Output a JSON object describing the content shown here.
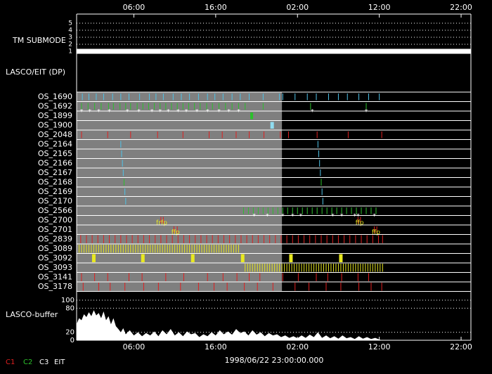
{
  "chart_data": {
    "type": "timeline",
    "xlabel": "1998/06/22 23:00:00.000",
    "xlim": [
      0,
      48.2
    ],
    "xticks": [
      {
        "value": 7,
        "label": "06:00"
      },
      {
        "value": 17,
        "label": "16:00"
      },
      {
        "value": 27,
        "label": "02:00"
      },
      {
        "value": 37,
        "label": "12:00"
      },
      {
        "value": 47,
        "label": "22:00"
      }
    ],
    "shaded_range": [
      0,
      25.1
    ],
    "shade_color": "#7f7f7f",
    "tm_submode": {
      "label": "TM SUBMODE",
      "ylim": [
        0.5,
        5.5
      ],
      "yticks": [
        1,
        2,
        3,
        4,
        5
      ],
      "x": [
        0,
        48.2
      ],
      "values": [
        1,
        1
      ],
      "color": "#ffffff"
    },
    "section_label": "LASCO/EIT (DP)",
    "marker_symbol": "*",
    "rows": [
      {
        "name": "OS_1690",
        "color": "#4fc3e8",
        "events": [
          0.7,
          1.5,
          2.4,
          3.3,
          4.4,
          5.4,
          6.4,
          7.7,
          8.9,
          9.7,
          10.6,
          11.8,
          12.8,
          13.8,
          14.9,
          16.0,
          16.9,
          17.9,
          19.0,
          20.0,
          21.1,
          22.8,
          24.8,
          25.2,
          26.7,
          28.2,
          29.3,
          30.8,
          32.0,
          33.1,
          34.5,
          35.7,
          37.0
        ]
      },
      {
        "name": "OS_1692",
        "color": "#2bc02b",
        "events": [
          0.6,
          1.4,
          2.2,
          3.0,
          3.9,
          4.5,
          5.3,
          6.0,
          6.6,
          7.4,
          8.1,
          8.8,
          9.5,
          10.2,
          10.9,
          11.6,
          12.3,
          13.0,
          13.7,
          14.4,
          15.1,
          15.9,
          16.6,
          17.4,
          18.2,
          19.0,
          19.8,
          20.6,
          22.8,
          28.6,
          35.4
        ],
        "stars": [
          0.6,
          1.6,
          2.7,
          4.0,
          6.2,
          7.6,
          9.2,
          10.2,
          11.2,
          12.4,
          13.4,
          14.7,
          16.0,
          17.4,
          18.6,
          19.8,
          28.8,
          35.4
        ]
      },
      {
        "name": "OS_1899",
        "color": "#2bc02b",
        "events": [
          21.4
        ]
      },
      {
        "name": "OS_1900",
        "color": "#8fdcf0",
        "events": [
          23.9
        ]
      },
      {
        "name": "OS_2048",
        "color": "#e02020",
        "events": [
          0.6,
          3.8,
          6.6,
          9.9,
          13.0,
          16.2,
          17.8,
          19.5,
          21.1,
          22.9,
          24.9,
          25.9,
          29.4,
          33.2,
          37.3
        ]
      },
      {
        "name": "OS_2164",
        "color": "#4fc3e8",
        "events": [
          5.4,
          29.5
        ]
      },
      {
        "name": "OS_2165",
        "color": "#4fc3e8",
        "events": [
          5.5,
          29.6
        ]
      },
      {
        "name": "OS_2166",
        "color": "#4fc3e8",
        "events": [
          5.6,
          29.7
        ]
      },
      {
        "name": "OS_2167",
        "color": "#4fc3e8",
        "events": [
          5.7,
          29.8
        ]
      },
      {
        "name": "OS_2168",
        "color": "#2bc02b",
        "events": [
          5.8,
          29.9
        ]
      },
      {
        "name": "OS_2169",
        "color": "#4fc3e8",
        "events": [
          5.9,
          30.0
        ]
      },
      {
        "name": "OS_2170",
        "color": "#4fc3e8",
        "events": [
          6.0,
          30.1
        ]
      },
      {
        "name": "OS_2566",
        "color": "#2bc02b",
        "events": [
          20.4,
          21.0,
          21.6,
          22.2,
          22.8,
          23.4,
          24.0,
          24.6,
          25.2,
          25.8,
          26.4,
          27.0,
          27.6,
          28.2,
          28.8,
          29.4,
          30.0,
          30.6,
          31.2,
          31.8,
          32.4,
          33.0,
          33.6,
          34.2,
          34.8,
          35.4,
          36.0,
          36.6
        ],
        "stars": [
          21.7,
          23.3,
          25.2,
          26.4,
          27.4,
          31.3,
          32.4,
          34.0,
          34.4,
          36.4
        ]
      },
      {
        "name": "OS_2700",
        "color": "#e02020",
        "events": [
          10.3,
          10.6,
          34.4,
          34.7
        ],
        "labels": [
          {
            "x": 10.4,
            "text": "frfp"
          },
          {
            "x": 34.6,
            "text": "ffp"
          }
        ]
      },
      {
        "name": "OS_2701",
        "color": "#e02020",
        "events": [
          11.9,
          12.3,
          36.4,
          36.7
        ],
        "labels": [
          {
            "x": 12.1,
            "text": "ffp"
          },
          {
            "x": 36.6,
            "text": "ffp"
          }
        ]
      },
      {
        "name": "OS_2839",
        "color": "#e02020",
        "events": [
          0.5,
          1.2,
          1.9,
          2.6,
          3.3,
          4.0,
          4.7,
          5.4,
          6.1,
          6.8,
          7.5,
          8.2,
          8.9,
          9.6,
          10.3,
          11.0,
          11.7,
          12.4,
          13.1,
          13.8,
          14.5,
          15.2,
          15.9,
          16.6,
          17.3,
          18.0,
          18.7,
          19.4,
          20.1,
          20.8,
          21.5,
          22.2,
          22.9,
          23.6,
          24.3,
          25.0,
          25.7,
          26.4,
          27.1,
          27.8,
          28.5,
          29.2,
          29.9,
          30.6,
          31.3,
          32.0,
          32.7,
          33.4,
          34.1,
          34.8,
          35.5,
          36.2,
          36.9,
          37.4
        ]
      },
      {
        "name": "OS_3089",
        "color": "#e8e820",
        "events": [
          0.3,
          0.6,
          0.9,
          1.2,
          1.5,
          1.8,
          2.1,
          2.4,
          2.7,
          3.0,
          3.3,
          3.6,
          3.9,
          4.2,
          4.5,
          4.8,
          5.1,
          5.4,
          5.7,
          6.0,
          6.3,
          6.6,
          6.9,
          7.2,
          7.5,
          7.8,
          8.1,
          8.4,
          8.7,
          9.0,
          9.3,
          9.6,
          9.9,
          10.2,
          10.5,
          10.8,
          11.1,
          11.4,
          11.7,
          12.0,
          12.3,
          12.6,
          12.9,
          13.2,
          13.5,
          13.8,
          14.1,
          14.4,
          14.7,
          15.0,
          15.3,
          15.6,
          15.9,
          16.2,
          16.5,
          16.8,
          17.1,
          17.4,
          17.7,
          18.0,
          18.3,
          18.6,
          18.9,
          19.2,
          19.5,
          19.8
        ]
      },
      {
        "name": "OS_3092",
        "color": "#e8e820",
        "events": [
          2.1,
          8.1,
          14.2,
          20.3,
          26.2,
          32.3
        ]
      },
      {
        "name": "OS_3093",
        "color": "#e8e820",
        "events": [
          20.6,
          20.9,
          21.2,
          21.5,
          21.8,
          22.1,
          22.4,
          22.7,
          23.0,
          23.3,
          23.6,
          23.9,
          24.2,
          24.5,
          24.8,
          25.1,
          25.4,
          25.7,
          26.0,
          26.3,
          26.6,
          26.9,
          27.2,
          27.5,
          27.8,
          28.1,
          28.4,
          28.7,
          29.0,
          29.3,
          29.6,
          29.9,
          30.2,
          30.5,
          30.8,
          31.1,
          31.4,
          31.7,
          32.0,
          32.3,
          32.6,
          32.9,
          33.2,
          33.5,
          33.8,
          34.1,
          34.4,
          34.7,
          35.0,
          35.3,
          35.6,
          35.9,
          36.2,
          36.5,
          36.8,
          37.1,
          37.4
        ]
      },
      {
        "name": "OS_3141",
        "color": "#e02020",
        "events": [
          0.6,
          2.2,
          3.8,
          6.4,
          8.0,
          10.9,
          13.1,
          16.0,
          17.9,
          19.6,
          21.1,
          22.4,
          25.2,
          27.1,
          29.3,
          30.7,
          32.4,
          34.4,
          35.7
        ]
      },
      {
        "name": "OS_3178",
        "color": "#e02020",
        "events": [
          0.8,
          2.7,
          4.1,
          5.9,
          8.2,
          10.0,
          12.7,
          14.9,
          16.8,
          18.4,
          20.5,
          22.1,
          24.0,
          26.7,
          28.4,
          30.5,
          32.3,
          34.5,
          36.0,
          37.3
        ]
      }
    ],
    "buffer": {
      "label": "LASCO-buffer",
      "ylim": [
        0,
        100
      ],
      "yticks": [
        0,
        20,
        80,
        100
      ],
      "color": "#ffffff",
      "x": [
        0,
        0.3,
        0.6,
        0.9,
        1.2,
        1.5,
        1.8,
        2.1,
        2.4,
        2.7,
        3.0,
        3.3,
        3.6,
        3.9,
        4.2,
        4.5,
        4.8,
        5.1,
        5.4,
        5.7,
        6.0,
        6.5,
        7.0,
        7.5,
        8.0,
        8.5,
        9.0,
        9.5,
        10.0,
        10.5,
        11.0,
        11.5,
        12.0,
        12.5,
        13.0,
        13.5,
        14.0,
        14.5,
        15.0,
        15.5,
        16.0,
        16.5,
        17.0,
        17.5,
        18.0,
        18.5,
        19.0,
        19.5,
        20.0,
        20.5,
        21.0,
        21.5,
        22.0,
        22.5,
        23.0,
        23.5,
        24.0,
        24.5,
        25.0,
        25.5,
        26.0,
        26.5,
        27.0,
        27.5,
        28.0,
        28.5,
        29.0,
        29.5,
        30.0,
        30.5,
        31.0,
        31.5,
        32.0,
        32.5,
        33.0,
        33.5,
        34.0,
        34.5,
        35.0,
        35.5,
        36.0,
        36.5,
        37.0,
        37.3
      ],
      "values": [
        40,
        55,
        50,
        65,
        58,
        70,
        60,
        75,
        62,
        68,
        55,
        72,
        50,
        60,
        40,
        55,
        35,
        28,
        20,
        30,
        15,
        25,
        12,
        20,
        10,
        18,
        12,
        22,
        10,
        25,
        15,
        28,
        12,
        20,
        10,
        22,
        15,
        18,
        8,
        15,
        10,
        20,
        12,
        25,
        15,
        22,
        14,
        28,
        18,
        22,
        12,
        25,
        14,
        20,
        10,
        18,
        12,
        15,
        8,
        12,
        6,
        10,
        5,
        12,
        6,
        14,
        8,
        20,
        6,
        12,
        5,
        10,
        4,
        12,
        5,
        8,
        3,
        10,
        4,
        8,
        3,
        6,
        2,
        0
      ]
    },
    "legend": [
      {
        "name": "C1",
        "color": "#e02020"
      },
      {
        "name": "C2",
        "color": "#2bc02b"
      },
      {
        "name": "C3",
        "color": "#ffffff"
      },
      {
        "name": "EIT",
        "color": "#ffffff"
      }
    ]
  }
}
